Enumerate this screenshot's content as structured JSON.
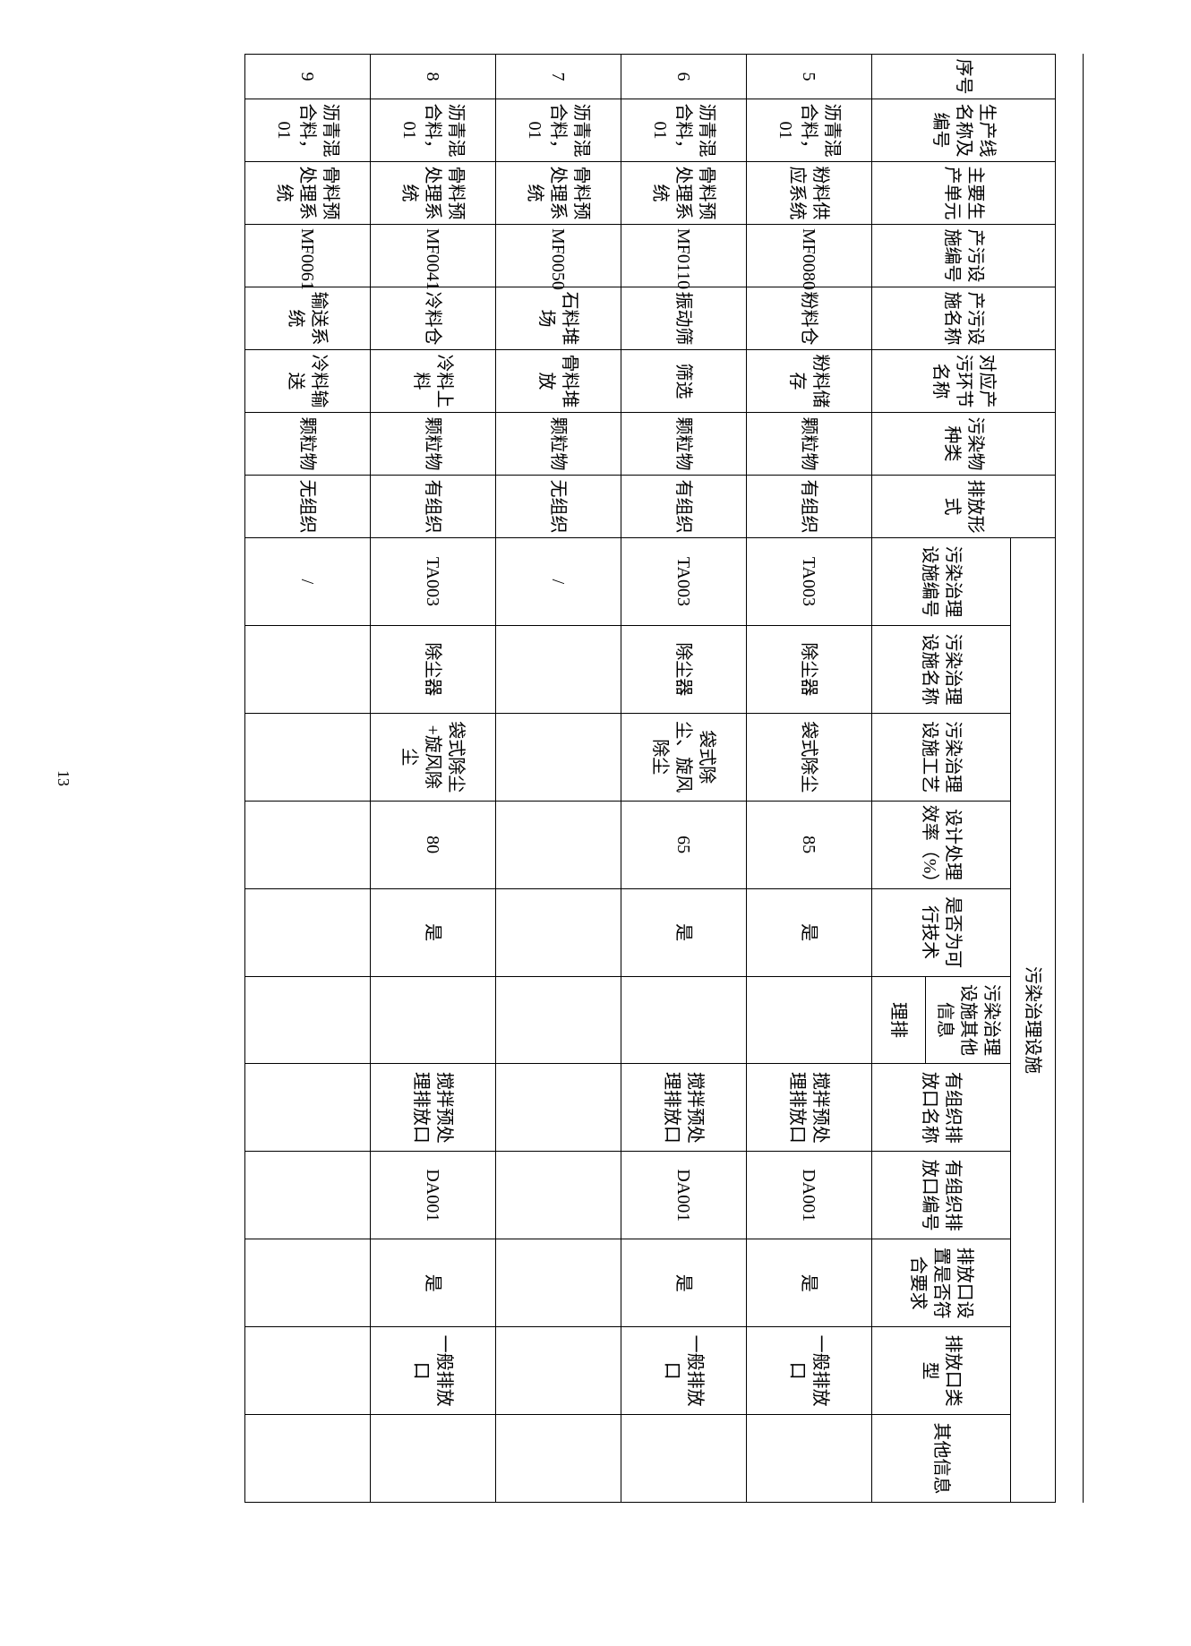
{
  "page_number": "13",
  "table": {
    "section_header": "污染治理设施",
    "header_row1": [
      "序号",
      "生产线名称及编号",
      "主要生产单元",
      "产污设施编号",
      "产污设施名称",
      "对应产污环节名称",
      "污染物种类",
      "排放形式"
    ],
    "header_row2": [
      "污染治理设施编号",
      "污染治理设施名称",
      "污染治理设施工艺",
      "设计处理效率（%）",
      "是否为可行技术",
      "污染治理设施其他信息",
      "有组织排放口名称",
      "有组织排放口编号",
      "排放口设置是否符合要求",
      "排放口类型",
      "其他信息"
    ],
    "subheader_text": "理排",
    "rows": [
      {
        "seq": "5",
        "line": "沥青混合料，01",
        "unit": "粉料供应系统",
        "facility_code": "MF0080",
        "facility_name": "粉料仓",
        "segment": "粉料储存",
        "pollutant": "颗粒物",
        "emission_form": "有组织",
        "treat_code": "TA003",
        "treat_name": "除尘器",
        "treat_process": "袋式除尘",
        "efficiency": "85",
        "feasible": "是",
        "other_info": "",
        "outlet_name": "搅拌预处理排放口",
        "outlet_code": "DA001",
        "outlet_ok": "是",
        "outlet_type": "一般排放口",
        "other": ""
      },
      {
        "seq": "6",
        "line": "沥青混合料，01",
        "unit": "骨料预处理系统",
        "facility_code": "MF0110",
        "facility_name": "振动筛",
        "segment": "筛选",
        "pollutant": "颗粒物",
        "emission_form": "有组织",
        "treat_code": "TA003",
        "treat_name": "除尘器",
        "treat_process": "袋式除尘、旋风除尘",
        "efficiency": "65",
        "feasible": "是",
        "other_info": "",
        "outlet_name": "搅拌预处理排放口",
        "outlet_code": "DA001",
        "outlet_ok": "是",
        "outlet_type": "一般排放口",
        "other": ""
      },
      {
        "seq": "7",
        "line": "沥青混合料，01",
        "unit": "骨料预处理系统",
        "facility_code": "MF0050",
        "facility_name": "石料堆场",
        "segment": "骨料堆放",
        "pollutant": "颗粒物",
        "emission_form": "无组织",
        "treat_code": "/",
        "treat_name": "",
        "treat_process": "",
        "efficiency": "",
        "feasible": "",
        "other_info": "",
        "outlet_name": "",
        "outlet_code": "",
        "outlet_ok": "",
        "outlet_type": "",
        "other": ""
      },
      {
        "seq": "8",
        "line": "沥青混合料，01",
        "unit": "骨料预处理系统",
        "facility_code": "MF0041",
        "facility_name": "冷料仓",
        "segment": "冷料上料",
        "pollutant": "颗粒物",
        "emission_form": "有组织",
        "treat_code": "TA003",
        "treat_name": "除尘器",
        "treat_process": "袋式除尘+旋风除尘",
        "efficiency": "80",
        "feasible": "是",
        "other_info": "",
        "outlet_name": "搅拌预处理排放口",
        "outlet_code": "DA001",
        "outlet_ok": "是",
        "outlet_type": "一般排放口",
        "other": ""
      },
      {
        "seq": "9",
        "line": "沥青混合料，01",
        "unit": "骨料预处理系统",
        "facility_code": "MF0061",
        "facility_name": "输送系统",
        "segment": "冷料输送",
        "pollutant": "颗粒物",
        "emission_form": "无组织",
        "treat_code": "/",
        "treat_name": "",
        "treat_process": "",
        "efficiency": "",
        "feasible": "",
        "other_info": "",
        "outlet_name": "",
        "outlet_code": "",
        "outlet_ok": "",
        "outlet_type": "",
        "other": ""
      }
    ]
  }
}
